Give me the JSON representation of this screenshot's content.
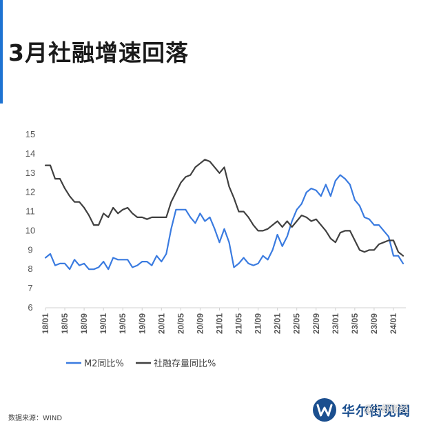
{
  "title": "3月社融增速回落",
  "source": "数据来源：WIND",
  "brand": {
    "name": "华尔街见闻",
    "logo_icon": "wallstreetcn-logo-icon",
    "color": "#1b4f8f"
  },
  "watermark": "@小郎财经",
  "colors": {
    "accent": "#1e73d2",
    "m2": "#3a7be0",
    "tsf": "#404040"
  },
  "chart_data": {
    "type": "line",
    "title": "3月社融增速回落",
    "xlabel": "",
    "ylabel": "",
    "ylim": [
      6,
      15
    ],
    "yticks": [
      6,
      7,
      8,
      9,
      10,
      11,
      12,
      13,
      14,
      15
    ],
    "grid": false,
    "legend": "bottom-left",
    "x_start": "2018-01",
    "x_end": "2024-03",
    "xticks": [
      "18/01",
      "18/05",
      "18/09",
      "19/01",
      "19/05",
      "19/09",
      "20/01",
      "20/05",
      "20/09",
      "21/01",
      "21/05",
      "21/09",
      "22/01",
      "22/05",
      "22/09",
      "23/01",
      "23/05",
      "23/09",
      "24/01"
    ],
    "series": [
      {
        "name": "M2同比%",
        "values": [
          8.6,
          8.8,
          8.2,
          8.3,
          8.3,
          8.0,
          8.5,
          8.2,
          8.3,
          8.0,
          8.0,
          8.1,
          8.4,
          8.0,
          8.6,
          8.5,
          8.5,
          8.5,
          8.1,
          8.2,
          8.4,
          8.4,
          8.2,
          8.7,
          8.4,
          8.8,
          10.1,
          11.1,
          11.1,
          11.1,
          10.7,
          10.4,
          10.9,
          10.5,
          10.7,
          10.1,
          9.4,
          10.1,
          9.4,
          8.1,
          8.3,
          8.6,
          8.3,
          8.2,
          8.3,
          8.7,
          8.5,
          9.0,
          9.8,
          9.2,
          9.7,
          10.5,
          11.1,
          11.4,
          12.0,
          12.2,
          12.1,
          11.8,
          12.4,
          11.8,
          12.6,
          12.9,
          12.7,
          12.4,
          11.6,
          11.3,
          10.7,
          10.6,
          10.3,
          10.3,
          10.0,
          9.7,
          8.7,
          8.7,
          8.3
        ]
      },
      {
        "name": "社融存量同比%",
        "values": [
          13.4,
          13.4,
          12.7,
          12.7,
          12.2,
          11.8,
          11.5,
          11.5,
          11.2,
          10.8,
          10.3,
          10.3,
          10.9,
          10.7,
          11.2,
          10.9,
          11.1,
          11.2,
          10.9,
          10.7,
          10.7,
          10.6,
          10.7,
          10.7,
          10.7,
          10.7,
          11.5,
          12.0,
          12.5,
          12.8,
          12.9,
          13.3,
          13.5,
          13.7,
          13.6,
          13.3,
          13.0,
          13.3,
          12.3,
          11.7,
          11.0,
          11.0,
          10.7,
          10.3,
          10.0,
          10.0,
          10.1,
          10.3,
          10.5,
          10.2,
          10.5,
          10.2,
          10.5,
          10.8,
          10.7,
          10.5,
          10.6,
          10.3,
          10.0,
          9.6,
          9.4,
          9.9,
          10.0,
          10.0,
          9.5,
          9.0,
          8.9,
          9.0,
          9.0,
          9.3,
          9.4,
          9.5,
          9.5,
          8.9,
          8.7
        ]
      }
    ]
  }
}
